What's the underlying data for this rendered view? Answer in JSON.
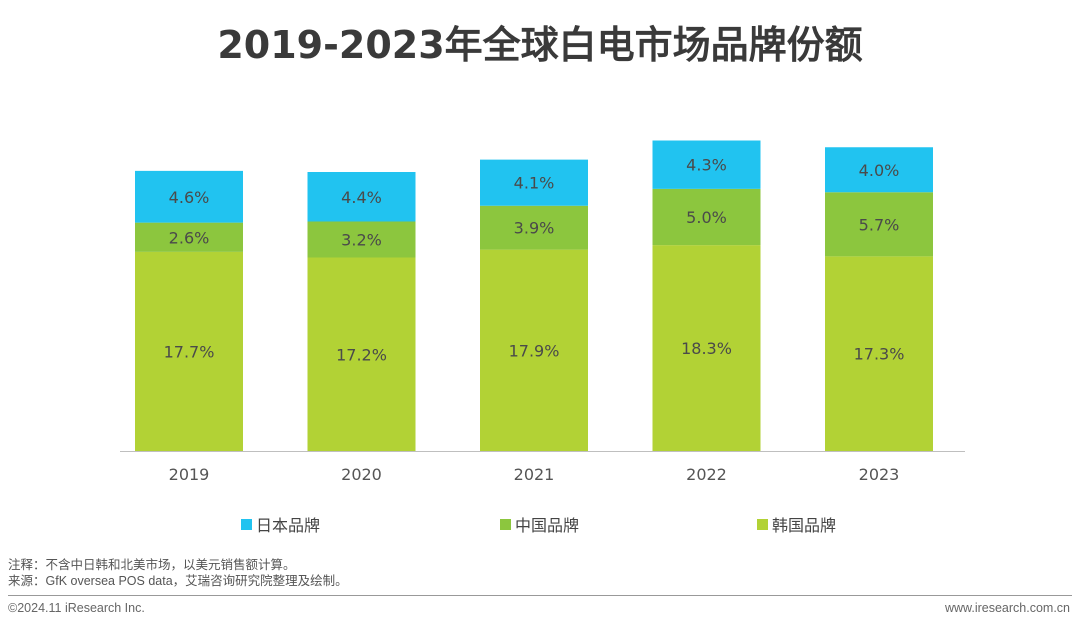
{
  "chart_data": {
    "type": "bar",
    "stacked": true,
    "title": "2019-2023年全球白电市场品牌份额",
    "categories": [
      "2019",
      "2020",
      "2021",
      "2022",
      "2023"
    ],
    "series": [
      {
        "name": "韩国品牌",
        "color": "#b2d235",
        "values": [
          17.7,
          17.2,
          17.9,
          18.3,
          17.3
        ],
        "labels": [
          "17.7%",
          "17.2%",
          "17.9%",
          "18.3%",
          "17.3%"
        ]
      },
      {
        "name": "中国品牌",
        "color": "#8cc63e",
        "values": [
          2.6,
          3.2,
          3.9,
          5.0,
          5.7
        ],
        "labels": [
          "2.6%",
          "3.2%",
          "3.9%",
          "5.0%",
          "5.7%"
        ]
      },
      {
        "name": "日本品牌",
        "color": "#21c3f0",
        "values": [
          4.6,
          4.4,
          4.1,
          4.3,
          4.0
        ],
        "labels": [
          "4.6%",
          "4.4%",
          "4.1%",
          "4.3%",
          "4.0%"
        ]
      }
    ],
    "xlabel": "",
    "ylabel": "",
    "ylim": [
      0,
      30
    ],
    "grid": false,
    "legend_position": "bottom",
    "legend_order": [
      "日本品牌",
      "中国品牌",
      "韩国品牌"
    ]
  },
  "legend": [
    {
      "label": "日本品牌",
      "color": "#21c3f0"
    },
    {
      "label": "中国品牌",
      "color": "#8cc63e"
    },
    {
      "label": "韩国品牌",
      "color": "#b2d235"
    }
  ],
  "footer": {
    "note": "注释：不含中日韩和北美市场，以美元销售额计算。",
    "source": "来源：GfK oversea POS data，艾瑞咨询研究院整理及绘制。",
    "copyright": "©2024.11 iResearch Inc.",
    "website": "www.iresearch.com.cn"
  }
}
